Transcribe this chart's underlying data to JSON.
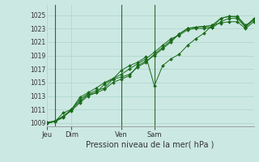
{
  "xlabel": "Pression niveau de la mer( hPa )",
  "bg_color": "#cce8e2",
  "grid_color": "#aad4cc",
  "line_color": "#1a6b1a",
  "marker_color": "#1a6b1a",
  "vline_color": "#2d6b2d",
  "ylim": [
    1008.5,
    1026.5
  ],
  "yticks": [
    1009,
    1011,
    1013,
    1015,
    1017,
    1019,
    1021,
    1023,
    1025
  ],
  "xtick_labels": [
    "Jeu",
    "Dim",
    "Ven",
    "Sam"
  ],
  "vline_positions": [
    1.5,
    9.5,
    13.5
  ],
  "xlim": [
    0,
    18
  ],
  "series": [
    [
      1009.0,
      1009.2,
      1009.8,
      1011.0,
      1012.2,
      1013.2,
      1013.5,
      1014.0,
      1015.0,
      1015.5,
      1016.0,
      1017.5,
      1018.2,
      1019.0,
      1020.0,
      1021.0,
      1022.2,
      1023.0,
      1023.2,
      1023.3,
      1023.5,
      1024.5,
      1024.8,
      1024.8,
      1023.5,
      1024.2
    ],
    [
      1009.0,
      1009.2,
      1010.0,
      1011.0,
      1012.5,
      1013.3,
      1013.8,
      1014.2,
      1015.5,
      1015.8,
      1016.2,
      1017.3,
      1018.0,
      1019.2,
      1020.2,
      1021.2,
      1022.2,
      1023.0,
      1023.2,
      1023.3,
      1023.2,
      1024.5,
      1024.8,
      1024.7,
      1023.3,
      1024.5
    ],
    [
      1009.0,
      1009.2,
      1010.5,
      1011.0,
      1012.8,
      1013.5,
      1014.2,
      1015.0,
      1015.6,
      1016.2,
      1017.0,
      1017.8,
      1018.5,
      1019.5,
      1020.5,
      1021.5,
      1022.0,
      1022.8,
      1023.0,
      1023.0,
      1023.1,
      1024.0,
      1024.5,
      1024.5,
      1023.2,
      1024.3
    ],
    [
      1009.1,
      1009.3,
      1010.0,
      1010.8,
      1012.0,
      1013.0,
      1013.5,
      1014.8,
      1015.5,
      1016.8,
      1017.5,
      1018.0,
      1018.8,
      1014.5,
      1017.5,
      1018.5,
      1019.2,
      1020.5,
      1021.5,
      1022.3,
      1023.5,
      1023.8,
      1024.0,
      1024.0,
      1023.0,
      1024.0
    ]
  ]
}
